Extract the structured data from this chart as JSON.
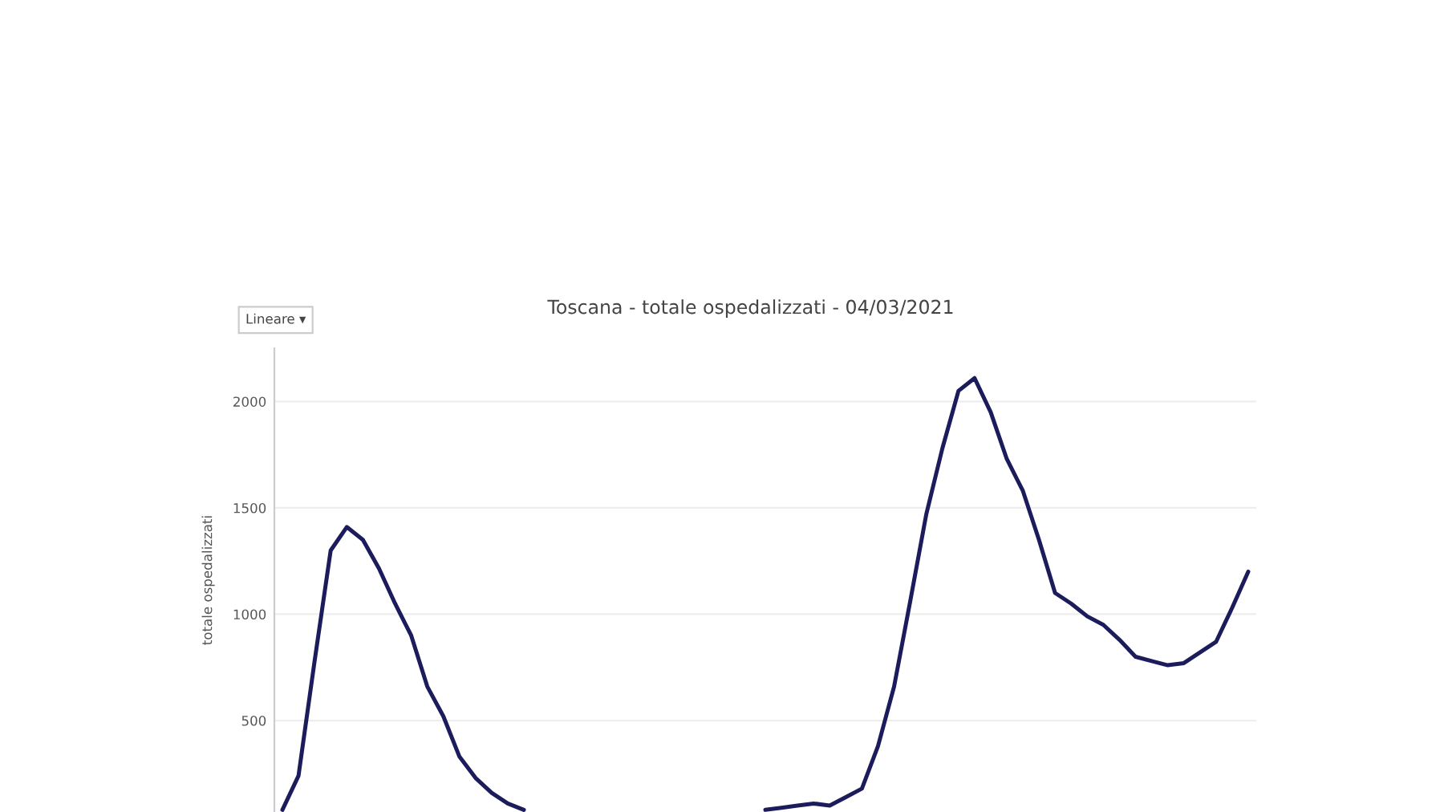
{
  "chart_data": {
    "type": "line",
    "title": "Toscana - totale ospedalizzati - 04/03/2021",
    "ylabel": "totale ospedalizzati",
    "annotations": [
      "Lineare ▾"
    ],
    "categories": [
      null,
      null,
      null,
      null,
      null,
      null,
      null,
      null,
      null,
      null,
      null,
      null,
      null,
      null,
      null,
      null,
      null,
      null,
      null,
      null,
      null,
      null,
      null,
      null,
      null,
      null,
      null,
      null,
      null,
      null,
      null,
      null,
      null,
      null,
      null,
      null,
      null,
      null,
      null,
      null,
      null,
      null,
      null,
      null,
      null,
      null,
      null,
      null,
      null,
      null,
      null,
      null,
      null,
      null,
      null,
      null,
      null,
      null,
      null,
      null,
      null
    ],
    "series": [
      {
        "color": "#1c1c5c",
        "values": [
          80,
          240,
          780,
          1300,
          1410,
          1350,
          1215,
          1050,
          900,
          660,
          520,
          330,
          230,
          160,
          110,
          80,
          null,
          null,
          null,
          null,
          null,
          null,
          null,
          null,
          null,
          null,
          null,
          null,
          null,
          null,
          80,
          90,
          100,
          110,
          100,
          140,
          180,
          380,
          660,
          1060,
          1470,
          1780,
          2050,
          2110,
          1950,
          1730,
          1580,
          1350,
          1100,
          1050,
          990,
          950,
          880,
          800,
          780,
          760,
          770,
          820,
          870,
          1030,
          1200
        ]
      }
    ],
    "ylim": [
      70,
      2250
    ],
    "yticks": [
      500,
      1000,
      1500,
      2000
    ],
    "grid": "y",
    "line_style": "solid"
  }
}
